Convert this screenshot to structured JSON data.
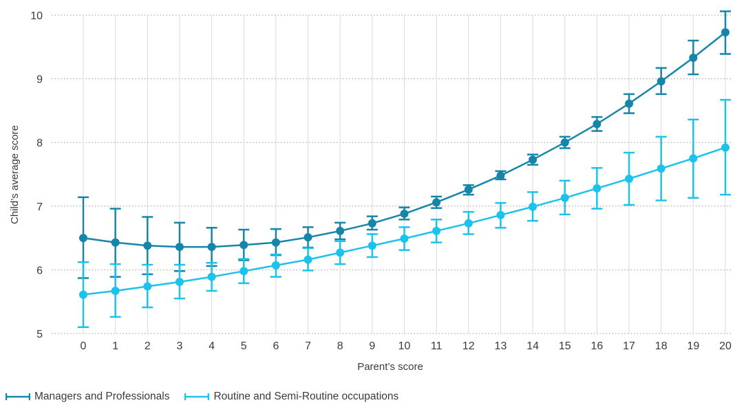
{
  "chart_data": {
    "type": "line",
    "title": "",
    "xlabel": "Parent’s score",
    "ylabel": "Child’s average score",
    "xlim": [
      0,
      20
    ],
    "ylim": [
      5,
      10
    ],
    "grid": true,
    "legend_position": "bottom-left",
    "x": [
      0,
      1,
      2,
      3,
      4,
      5,
      6,
      7,
      8,
      9,
      10,
      11,
      12,
      13,
      14,
      15,
      16,
      17,
      18,
      19,
      20
    ],
    "yticks": [
      "5",
      "6",
      "7",
      "8",
      "9",
      "10"
    ],
    "xticks": [
      "0",
      "1",
      "2",
      "3",
      "4",
      "5",
      "6",
      "7",
      "8",
      "9",
      "10",
      "11",
      "12",
      "13",
      "14",
      "15",
      "16",
      "17",
      "18",
      "19",
      "20"
    ],
    "series": [
      {
        "name": "Managers and Professionals",
        "color": "#1585a9",
        "values": [
          6.5,
          6.43,
          6.38,
          6.36,
          6.36,
          6.39,
          6.43,
          6.51,
          6.61,
          6.73,
          6.88,
          7.06,
          7.26,
          7.48,
          7.73,
          8.0,
          8.29,
          8.61,
          8.96,
          9.33,
          9.73
        ],
        "error_low": [
          5.87,
          5.89,
          5.93,
          5.98,
          6.06,
          6.15,
          6.23,
          6.35,
          6.48,
          6.63,
          6.79,
          6.97,
          7.18,
          7.42,
          7.65,
          7.91,
          8.18,
          8.46,
          8.76,
          9.07,
          9.39
        ],
        "error_high": [
          7.14,
          6.96,
          6.83,
          6.74,
          6.66,
          6.63,
          6.64,
          6.67,
          6.74,
          6.84,
          6.98,
          7.15,
          7.33,
          7.55,
          7.81,
          8.09,
          8.4,
          8.76,
          9.17,
          9.6,
          10.06
        ]
      },
      {
        "name": "Routine and Semi-Routine occupations",
        "color": "#1ac2ec",
        "values": [
          5.61,
          5.67,
          5.74,
          5.81,
          5.89,
          5.98,
          6.07,
          6.16,
          6.27,
          6.38,
          6.49,
          6.61,
          6.73,
          6.86,
          6.99,
          7.13,
          7.28,
          7.43,
          7.59,
          7.75,
          7.92
        ],
        "error_low": [
          5.1,
          5.26,
          5.41,
          5.55,
          5.67,
          5.79,
          5.89,
          5.99,
          6.09,
          6.2,
          6.31,
          6.43,
          6.56,
          6.66,
          6.77,
          6.87,
          6.96,
          7.02,
          7.09,
          7.13,
          7.18
        ],
        "error_high": [
          6.12,
          6.09,
          6.08,
          6.08,
          6.11,
          6.17,
          6.24,
          6.34,
          6.45,
          6.56,
          6.67,
          6.79,
          6.91,
          7.05,
          7.22,
          7.4,
          7.6,
          7.84,
          8.09,
          8.36,
          8.67
        ]
      }
    ]
  }
}
